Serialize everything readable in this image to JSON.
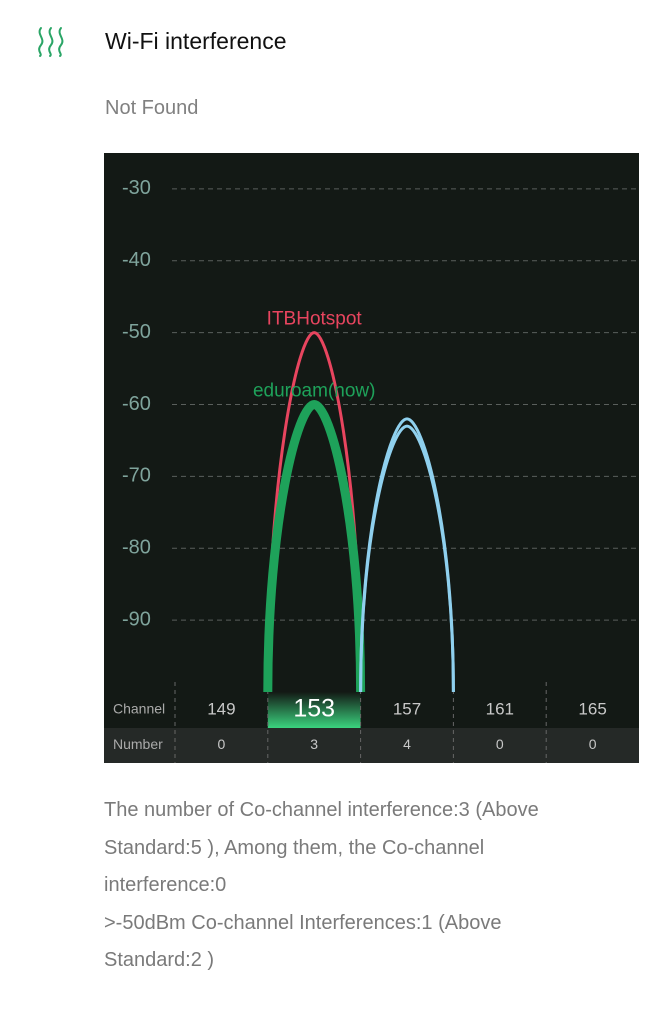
{
  "header": {
    "title": "Wi-Fi interference",
    "status": "Not Found"
  },
  "chart_data": {
    "type": "curve",
    "ylim": [
      -100,
      -25
    ],
    "yticks": [
      -30,
      -40,
      -50,
      -60,
      -70,
      -80,
      -90
    ],
    "grid": true,
    "xlim": [
      147,
      167
    ],
    "xticks": [
      149,
      153,
      157,
      161,
      165
    ],
    "highlight_channel": 153,
    "row_labels": [
      "Channel",
      "Number"
    ],
    "counts": [
      0,
      3,
      4,
      0,
      0
    ],
    "series": [
      {
        "name": "ITBHotspot",
        "color": "#e8455f",
        "x": [
          151,
          153,
          155
        ],
        "values": [
          -100,
          -50,
          -100
        ]
      },
      {
        "name": "eduroam(now)",
        "color": "#1ea25a",
        "x": [
          151,
          153,
          155
        ],
        "values": [
          -100,
          -60,
          -100
        ],
        "thick": true
      },
      {
        "color": "#8fd0ee",
        "x": [
          155,
          157,
          159
        ],
        "values": [
          -100,
          -62,
          -100
        ]
      },
      {
        "color": "#8fd0ee",
        "x": [
          155,
          157,
          159
        ],
        "values": [
          -100,
          -63,
          -100
        ]
      }
    ]
  },
  "footer": [
    "The number of Co-channel interference:3 (Above Standard:5 ), Among them, the Co-channel interference:0",
    ">-50dBm Co-channel Interferences:1 (Above Standard:2 )"
  ]
}
